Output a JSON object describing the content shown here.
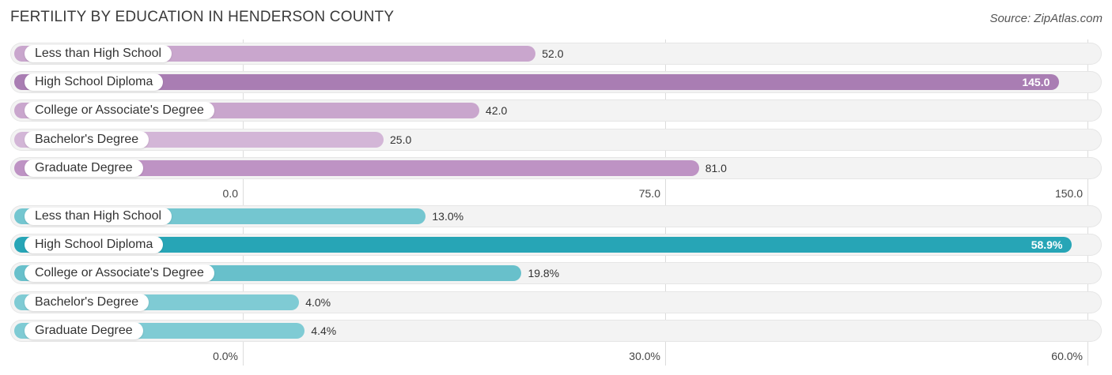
{
  "title": "FERTILITY BY EDUCATION IN HENDERSON COUNTY",
  "source": "Source: ZipAtlas.com",
  "chart_data": [
    {
      "type": "bar",
      "orientation": "horizontal",
      "categories": [
        "Less than High School",
        "High School Diploma",
        "College or Associate's Degree",
        "Bachelor's Degree",
        "Graduate Degree"
      ],
      "values": [
        52.0,
        145.0,
        42.0,
        25.0,
        81.0
      ],
      "labels": [
        "52.0",
        "145.0",
        "42.0",
        "25.0",
        "81.0"
      ],
      "ticks": [
        "0.0",
        "75.0",
        "150.0"
      ],
      "xlim": [
        0,
        150
      ],
      "colors": [
        "#c9a6cd",
        "#a97db3",
        "#c9a6cd",
        "#d3b6d7",
        "#be93c4"
      ],
      "grid": true
    },
    {
      "type": "bar",
      "orientation": "horizontal",
      "categories": [
        "Less than High School",
        "High School Diploma",
        "College or Associate's Degree",
        "Bachelor's Degree",
        "Graduate Degree"
      ],
      "values": [
        13.0,
        58.9,
        19.8,
        4.0,
        4.4
      ],
      "labels": [
        "13.0%",
        "58.9%",
        "19.8%",
        "4.0%",
        "4.4%"
      ],
      "ticks": [
        "0.0%",
        "30.0%",
        "60.0%"
      ],
      "xlim": [
        0,
        60
      ],
      "colors": [
        "#74c6d0",
        "#27a5b6",
        "#68c0cb",
        "#7fcbd4",
        "#7fcbd4"
      ],
      "grid": true
    }
  ]
}
